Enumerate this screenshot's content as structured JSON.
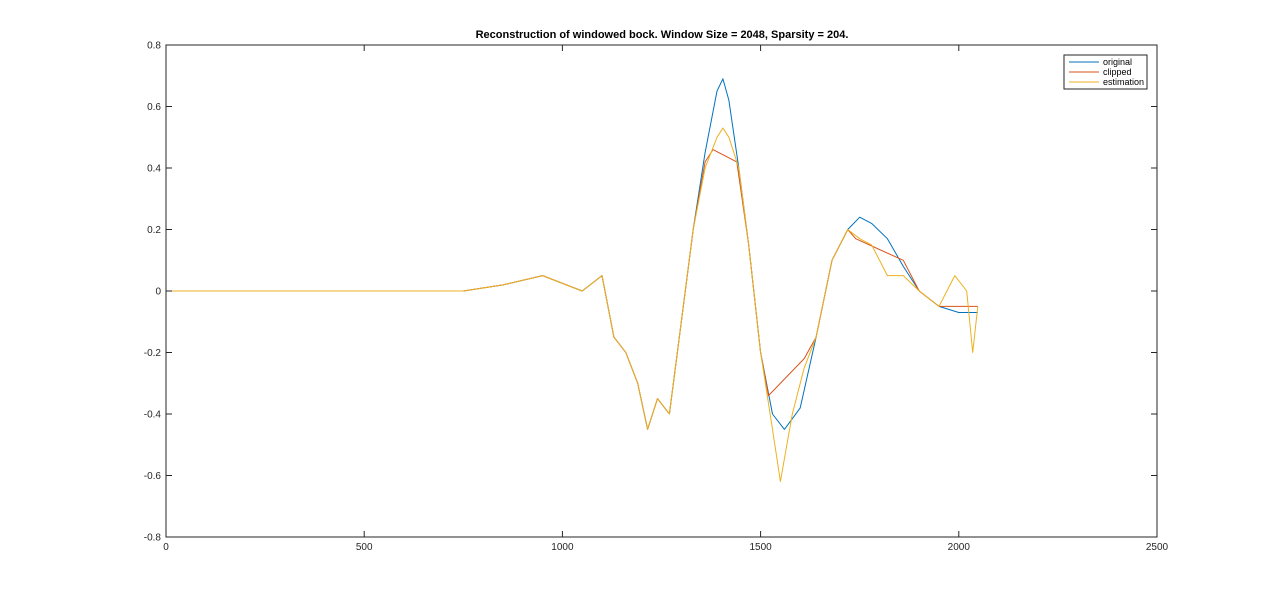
{
  "chart_data": {
    "type": "line",
    "title": "Reconstruction of windowed bock. Window Size = 2048, Sparsity = 204.",
    "xlabel": "",
    "ylabel": "",
    "xlim": [
      0,
      2500
    ],
    "ylim": [
      -0.8,
      0.8
    ],
    "xticks": [
      0,
      500,
      1000,
      1500,
      2000,
      2500
    ],
    "yticks": [
      -0.8,
      -0.6,
      -0.4,
      -0.2,
      0,
      0.2,
      0.4,
      0.6,
      0.8
    ],
    "grid": false,
    "legend_position": "top-right",
    "series": [
      {
        "name": "original",
        "color": "#0072BD",
        "x": [
          0,
          200,
          400,
          600,
          750,
          850,
          950,
          1050,
          1100,
          1130,
          1160,
          1190,
          1215,
          1240,
          1270,
          1300,
          1330,
          1360,
          1390,
          1405,
          1420,
          1445,
          1470,
          1500,
          1530,
          1560,
          1600,
          1640,
          1680,
          1720,
          1750,
          1780,
          1820,
          1860,
          1900,
          1950,
          2000,
          2048
        ],
        "y": [
          0,
          0,
          0,
          0,
          0,
          0.02,
          0.05,
          0,
          0.05,
          -0.15,
          -0.2,
          -0.3,
          -0.45,
          -0.35,
          -0.4,
          -0.1,
          0.2,
          0.45,
          0.65,
          0.69,
          0.62,
          0.4,
          0.15,
          -0.2,
          -0.4,
          -0.45,
          -0.38,
          -0.15,
          0.1,
          0.2,
          0.24,
          0.22,
          0.17,
          0.08,
          0.0,
          -0.05,
          -0.07,
          -0.07
        ]
      },
      {
        "name": "clipped",
        "color": "#D95319",
        "x": [
          0,
          200,
          400,
          600,
          750,
          850,
          950,
          1050,
          1100,
          1130,
          1160,
          1190,
          1215,
          1240,
          1270,
          1300,
          1330,
          1360,
          1380,
          1440,
          1470,
          1500,
          1520,
          1610,
          1640,
          1680,
          1720,
          1740,
          1860,
          1900,
          1950,
          1980,
          2048
        ],
        "y": [
          0,
          0,
          0,
          0,
          0,
          0.02,
          0.05,
          0,
          0.05,
          -0.15,
          -0.2,
          -0.3,
          -0.45,
          -0.35,
          -0.4,
          -0.1,
          0.2,
          0.42,
          0.46,
          0.42,
          0.15,
          -0.2,
          -0.34,
          -0.22,
          -0.15,
          0.1,
          0.2,
          0.17,
          0.1,
          0.0,
          -0.05,
          -0.05,
          -0.05
        ]
      },
      {
        "name": "estimation",
        "color": "#EDB120",
        "x": [
          0,
          200,
          400,
          600,
          750,
          850,
          950,
          1050,
          1100,
          1130,
          1160,
          1190,
          1215,
          1240,
          1270,
          1300,
          1330,
          1360,
          1390,
          1405,
          1420,
          1445,
          1470,
          1500,
          1530,
          1550,
          1580,
          1610,
          1640,
          1680,
          1720,
          1750,
          1780,
          1820,
          1860,
          1900,
          1950,
          1990,
          2020,
          2035,
          2048
        ],
        "y": [
          0,
          0,
          0,
          0,
          0,
          0.02,
          0.05,
          0,
          0.05,
          -0.15,
          -0.2,
          -0.3,
          -0.45,
          -0.35,
          -0.4,
          -0.1,
          0.2,
          0.4,
          0.5,
          0.53,
          0.5,
          0.4,
          0.15,
          -0.2,
          -0.45,
          -0.62,
          -0.4,
          -0.25,
          -0.15,
          0.1,
          0.2,
          0.17,
          0.15,
          0.05,
          0.05,
          0.0,
          -0.05,
          0.05,
          0.0,
          -0.2,
          -0.05
        ]
      }
    ]
  }
}
